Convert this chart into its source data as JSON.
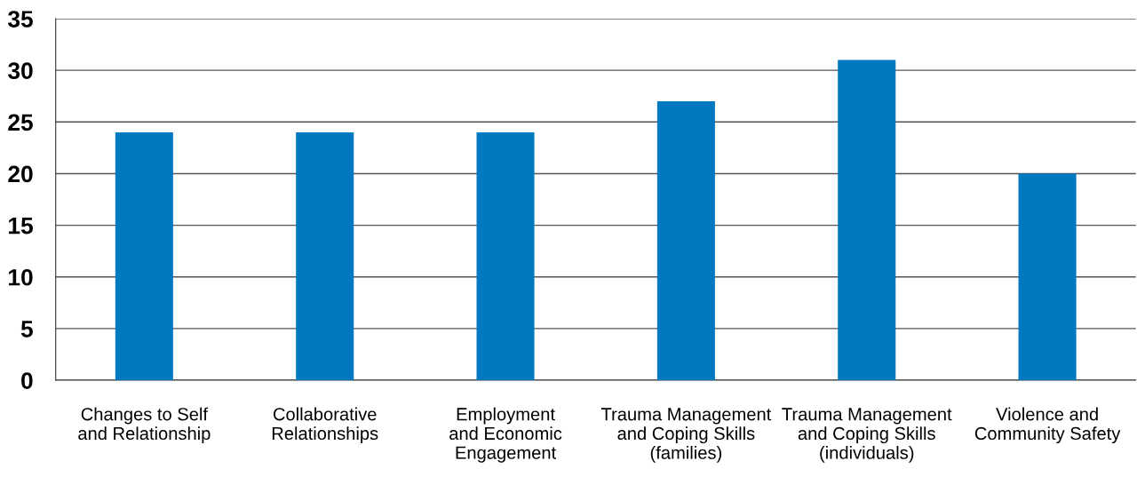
{
  "chart_data": {
    "type": "bar",
    "categories": [
      "Changes to Self\nand Relationship",
      "Collaborative\nRelationships",
      "Employment\nand Economic\nEngagement",
      "Trauma Management\nand Coping Skills\n(families)",
      "Trauma Management\nand Coping Skills\n(individuals)",
      "Violence and\nCommunity Safety"
    ],
    "values": [
      24,
      24,
      24,
      27,
      31,
      20
    ],
    "color": "#0079c1",
    "ylim": [
      0,
      35
    ],
    "yticks": [
      0,
      5,
      10,
      15,
      20,
      25,
      30,
      35
    ],
    "grid": "y",
    "legend": false
  }
}
